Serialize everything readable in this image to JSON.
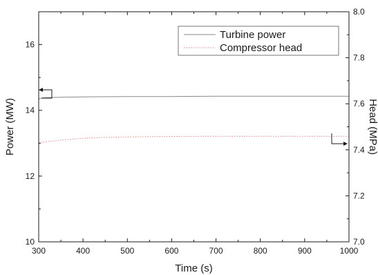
{
  "chart_data": {
    "type": "line",
    "title": "",
    "xlabel": "Time (s)",
    "ylabel_left": "Power (MW)",
    "ylabel_right": "Head (MPa)",
    "xlim": [
      300,
      1000
    ],
    "ylim_left": [
      10,
      17
    ],
    "ylim_right": [
      7.0,
      8.0
    ],
    "x_ticks": [
      300,
      400,
      500,
      600,
      700,
      800,
      900,
      1000
    ],
    "y_left_ticks": [
      10,
      12,
      14,
      16
    ],
    "y_right_ticks": [
      7.0,
      7.2,
      7.4,
      7.6,
      7.8,
      8.0
    ],
    "x_tick_labels": [
      "300",
      "400",
      "500",
      "600",
      "700",
      "800",
      "900",
      "1000"
    ],
    "y_left_tick_labels": [
      "10",
      "12",
      "14",
      "16"
    ],
    "y_right_tick_labels": [
      "7.0",
      "7.2",
      "7.4",
      "7.6",
      "7.8",
      "8.0"
    ],
    "grid": false,
    "legend_position": "top-right",
    "series": [
      {
        "name": "Turbine power",
        "axis": "left",
        "color": "#888888",
        "style": "solid",
        "x": [
          300,
          305,
          310,
          320,
          350,
          400,
          500,
          600,
          700,
          800,
          900,
          1000
        ],
        "y": [
          14.34,
          14.37,
          14.38,
          14.39,
          14.4,
          14.41,
          14.42,
          14.42,
          14.43,
          14.43,
          14.43,
          14.43
        ]
      },
      {
        "name": "Compressor head",
        "axis": "right",
        "color": "#f08080",
        "style": "dotted",
        "x": [
          300,
          320,
          350,
          400,
          450,
          500,
          600,
          700,
          800,
          900,
          1000
        ],
        "y": [
          7.43,
          7.436,
          7.442,
          7.45,
          7.454,
          7.456,
          7.458,
          7.459,
          7.459,
          7.459,
          7.459
        ]
      }
    ]
  }
}
